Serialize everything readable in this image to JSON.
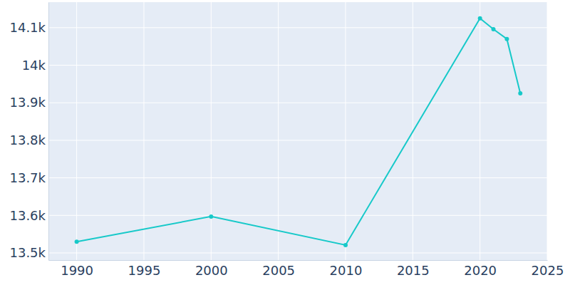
{
  "chart_data": {
    "type": "line",
    "x": [
      1990,
      2000,
      2010,
      2020,
      2021,
      2022,
      2023
    ],
    "values": [
      13530,
      13597,
      13521,
      14125,
      14096,
      14070,
      13925
    ],
    "color": "#17c9c9",
    "marker": "circle",
    "grid": true,
    "xlim": [
      1987.9,
      2025
    ],
    "xticks": [
      1990,
      1995,
      2000,
      2005,
      2010,
      2015,
      2020,
      2025
    ],
    "ylim": [
      13481,
      14168
    ],
    "yticks": [
      {
        "value": 13500,
        "label": "13.5k"
      },
      {
        "value": 13600,
        "label": "13.6k"
      },
      {
        "value": 13700,
        "label": "13.7k"
      },
      {
        "value": 13800,
        "label": "13.8k"
      },
      {
        "value": 13900,
        "label": "13.9k"
      },
      {
        "value": 14000,
        "label": "14k"
      },
      {
        "value": 14100,
        "label": "14.1k"
      }
    ]
  }
}
